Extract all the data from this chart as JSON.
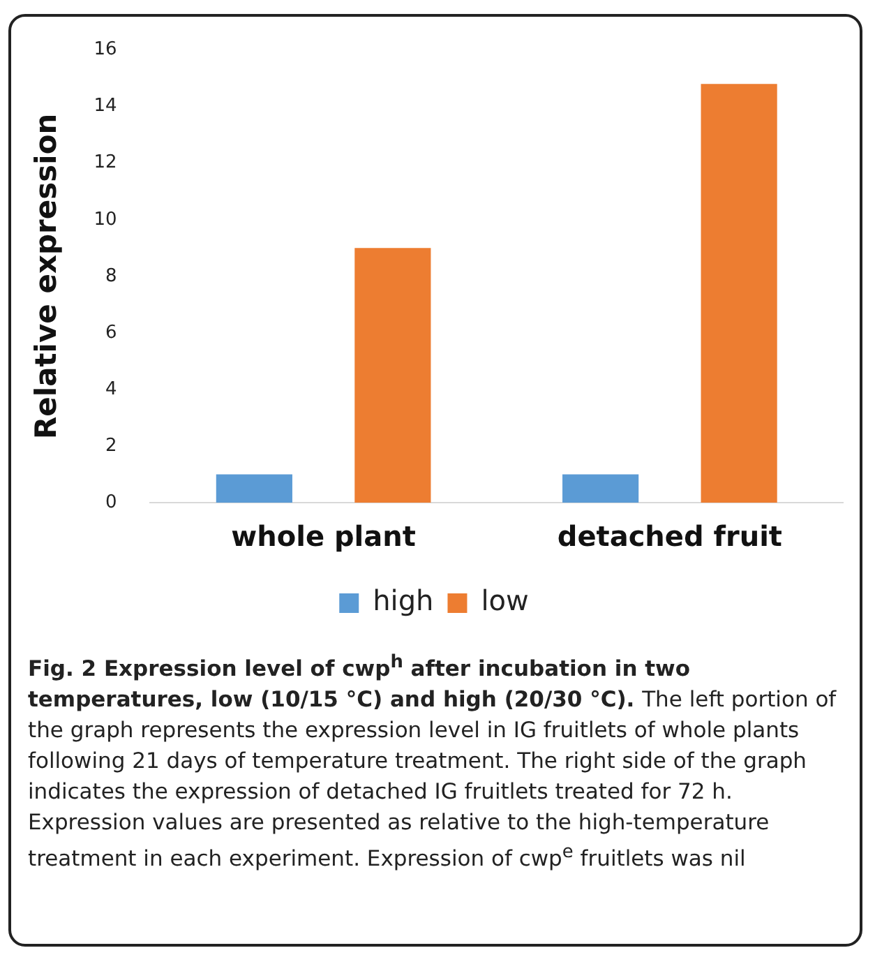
{
  "chart_data": {
    "type": "bar",
    "ylabel": "Relative expression",
    "categories": [
      "whole plant",
      "detached fruit"
    ],
    "series": [
      {
        "name": "high",
        "color": "#5b9bd5",
        "values": [
          1,
          1
        ]
      },
      {
        "name": "low",
        "color": "#ed7d31",
        "values": [
          9.0,
          14.8
        ]
      }
    ],
    "ylim": [
      0,
      16
    ],
    "yticks": [
      0,
      2,
      4,
      6,
      8,
      10,
      12,
      14,
      16
    ],
    "grid": false,
    "legend": "bottom",
    "annotations": [
      "Fig. 2 Expression level of cwp$^{h}$ after incubation in two temperatures, low (10/15 °C) and high (20/30 °C).",
      "The left portion of the graph represents the expression level in IG fruitlets of whole plants following 21 days of temperature treatment. The right side of the graph indicates the expression of detached IG fruitlets treated for 72 h. Expression values are presented as relative to the high-temperature treatment in each experiment. Expression of cwp$^{e}$ fruitlets was nil"
    ]
  }
}
